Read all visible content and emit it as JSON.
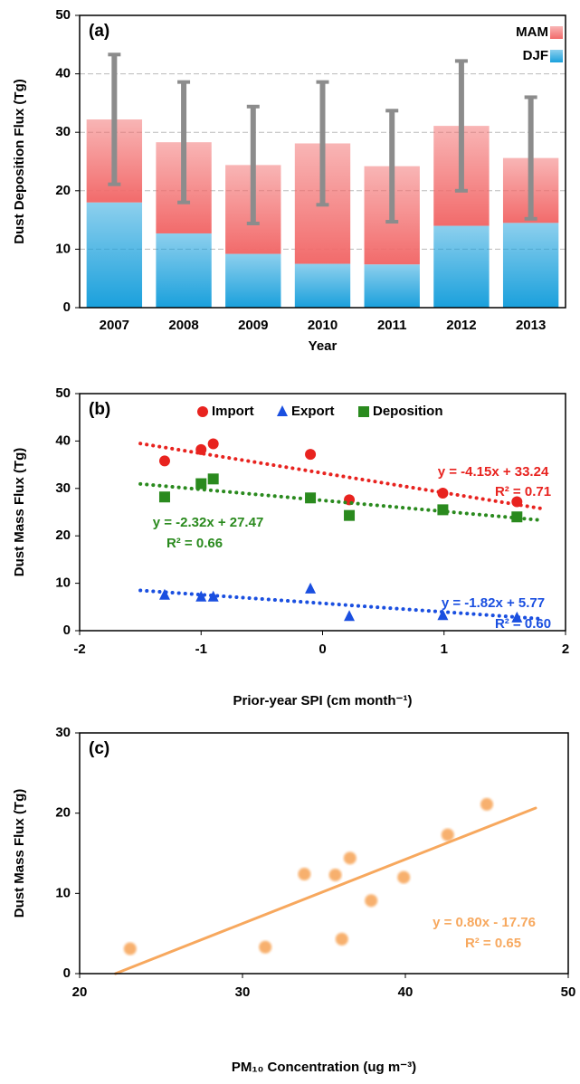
{
  "chart_data": [
    {
      "type": "bar",
      "annotation": "(a)",
      "xlabel": "Year",
      "ylabel": "Dust Deposition Flux (Tg)",
      "categories": [
        "2007",
        "2008",
        "2009",
        "2010",
        "2011",
        "2012",
        "2013"
      ],
      "series": [
        {
          "name": "MAM",
          "color": "#f26b6b",
          "values": [
            14.2,
            15.6,
            15.2,
            20.6,
            16.8,
            17.1,
            11.1
          ],
          "errors": [
            11.1,
            10.3,
            10.0,
            10.5,
            9.5,
            11.1,
            10.4
          ],
          "error_color": "#8c8c8c"
        },
        {
          "name": "DJF",
          "color": "#1aa0dc",
          "values": [
            18.0,
            12.7,
            9.2,
            7.5,
            7.4,
            14.0,
            14.5
          ]
        }
      ],
      "ylim": [
        0,
        50
      ],
      "yticks": [
        0,
        10,
        20,
        30,
        40,
        50
      ],
      "grid": true,
      "stacked": true,
      "legend": "top-right"
    },
    {
      "type": "scatter",
      "annotation": "(b)",
      "xlabel": "Prior-year SPI (cm month⁻¹)",
      "ylabel": "Dust Mass Flux (Tg)",
      "x": [
        -1.3,
        -1.0,
        -0.9,
        -0.1,
        0.22,
        0.99,
        1.6
      ],
      "series": [
        {
          "name": "Import",
          "color": "#e8231f",
          "marker": "circle",
          "values": [
            35.8,
            38.2,
            39.4,
            37.2,
            27.6,
            29.0,
            27.2
          ],
          "trendline": {
            "x": [
              -1.5,
              1.8
            ],
            "y": [
              39.47,
              25.77
            ],
            "equation": "y = -4.15x + 33.24",
            "r2": "R² = 0.71"
          }
        },
        {
          "name": "Export",
          "color": "#1a4fe0",
          "marker": "triangle",
          "values": [
            7.5,
            7.1,
            7.1,
            8.8,
            3.0,
            3.2,
            2.7
          ],
          "trendline": {
            "x": [
              -1.5,
              1.8
            ],
            "y": [
              8.5,
              2.49
            ],
            "equation": "y = -1.82x + 5.77",
            "r2": "R² = 0.60"
          }
        },
        {
          "name": "Deposition",
          "color": "#2a8a1e",
          "marker": "square",
          "values": [
            28.2,
            31.0,
            32.0,
            28.0,
            24.3,
            25.5,
            24.0
          ],
          "trendline": {
            "x": [
              -1.5,
              1.8
            ],
            "y": [
              30.95,
              23.3
            ],
            "equation": "y = -2.32x + 27.47",
            "r2": "R² = 0.66"
          }
        }
      ],
      "xlim": [
        -2,
        2
      ],
      "xticks": [
        -2,
        -1,
        0,
        1,
        2
      ],
      "ylim": [
        0,
        50
      ],
      "yticks": [
        0,
        10,
        20,
        30,
        40,
        50
      ],
      "grid": false,
      "legend": "top"
    },
    {
      "type": "scatter",
      "annotation": "(c)",
      "xlabel": "PM₁₀ Concentration (ug m⁻³)",
      "ylabel": "Dust Mass Flux (Tg)",
      "x": [
        23.1,
        31.4,
        33.8,
        35.7,
        36.1,
        36.6,
        37.9,
        39.9,
        42.6,
        45.0
      ],
      "values": [
        3.1,
        3.3,
        12.4,
        12.3,
        4.3,
        14.4,
        9.1,
        12.0,
        17.3,
        21.1
      ],
      "color": "#f7a85e",
      "marker": "circle",
      "trendline": {
        "x": [
          22.2,
          48
        ],
        "y": [
          0,
          20.64
        ],
        "equation": "y = 0.80x - 17.76",
        "r2": "R² = 0.65"
      },
      "xlim": [
        20,
        50
      ],
      "xticks": [
        20,
        30,
        40,
        50
      ],
      "ylim": [
        0,
        30
      ],
      "yticks": [
        0,
        10,
        20,
        30
      ],
      "grid": false
    }
  ]
}
